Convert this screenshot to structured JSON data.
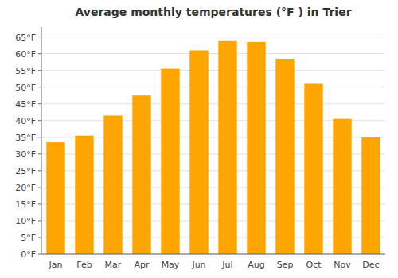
{
  "chart_data": {
    "type": "bar",
    "title": "Average monthly temperatures (°F ) in Trier",
    "categories": [
      "Jan",
      "Feb",
      "Mar",
      "Apr",
      "May",
      "Jun",
      "Jul",
      "Aug",
      "Sep",
      "Oct",
      "Nov",
      "Dec"
    ],
    "values": [
      33.5,
      35.5,
      41.5,
      47.5,
      55.5,
      61.0,
      64.0,
      63.5,
      58.5,
      51.0,
      40.5,
      35.0
    ],
    "color": "#FFA500",
    "ylim": [
      0,
      68
    ],
    "yticks": [
      {
        "value": 0,
        "label": "0°F"
      },
      {
        "value": 5,
        "label": "5°F"
      },
      {
        "value": 10,
        "label": "10°F"
      },
      {
        "value": 15,
        "label": "15°F"
      },
      {
        "value": 20,
        "label": "20°F"
      },
      {
        "value": 25,
        "label": "25°F"
      },
      {
        "value": 30,
        "label": "30°F"
      },
      {
        "value": 35,
        "label": "35°F"
      },
      {
        "value": 40,
        "label": "40°F"
      },
      {
        "value": 45,
        "label": "45°F"
      },
      {
        "value": 50,
        "label": "50°F"
      },
      {
        "value": 55,
        "label": "55°F"
      },
      {
        "value": 60,
        "label": "60°F"
      },
      {
        "value": 65,
        "label": "65°F"
      }
    ],
    "grid": true
  }
}
